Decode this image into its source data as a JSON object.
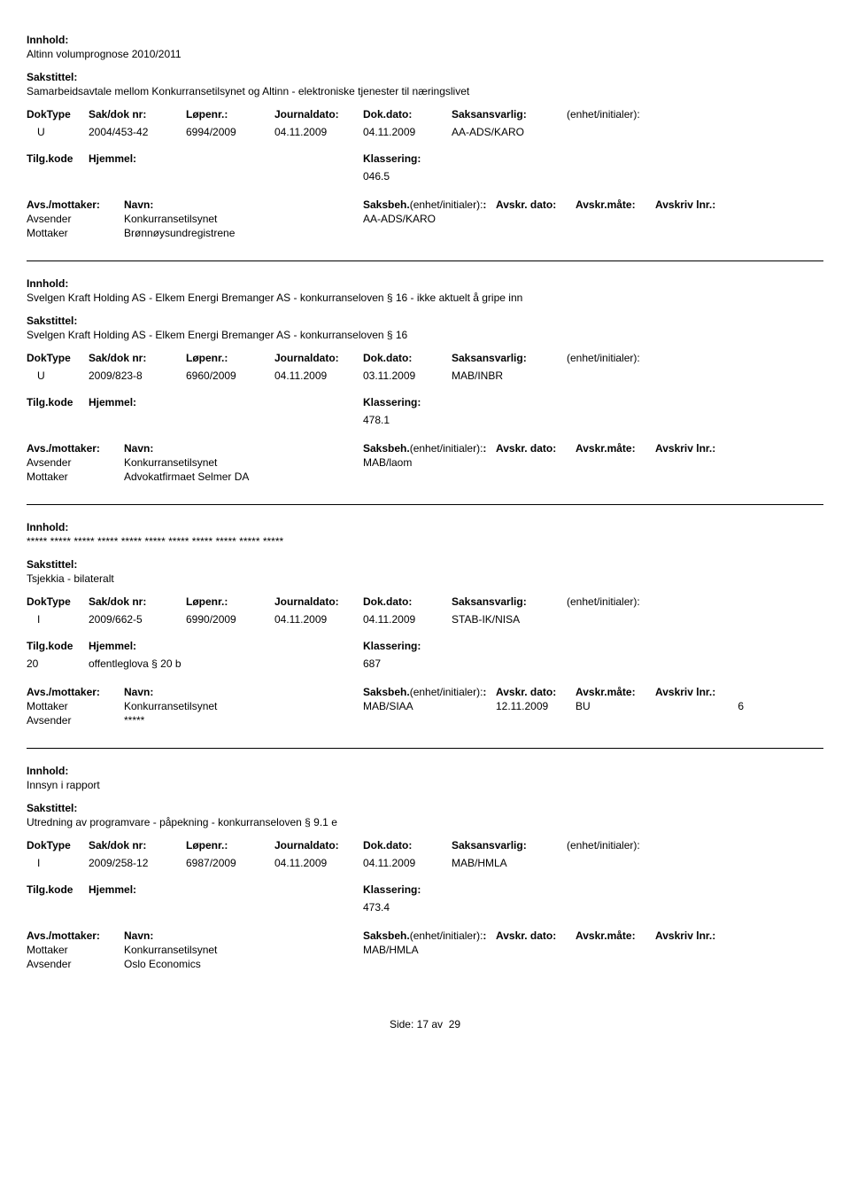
{
  "labels": {
    "innhold": "Innhold:",
    "sakstittel": "Sakstittel:",
    "doktype": "DokType",
    "sakdok": "Sak/dok nr:",
    "lopenr": "Løpenr.:",
    "journaldato": "Journaldato:",
    "dokdato": "Dok.dato:",
    "saksansvarlig": "Saksansvarlig:",
    "enhet": "(enhet/initialer):",
    "tilgkode": "Tilg.kode",
    "hjemmel": "Hjemmel:",
    "klassering": "Klassering:",
    "avsmottaker": "Avs./mottaker:",
    "navn": "Navn:",
    "saksbeh": "Saksbeh.",
    "avskrdato": "Avskr. dato:",
    "avskrmate": "Avskr.måte:",
    "avskrivlnr": "Avskriv lnr.:",
    "avsender": "Avsender",
    "mottaker": "Mottaker"
  },
  "records": [
    {
      "innhold": "Altinn volumprognose 2010/2011",
      "sakstittel": "Samarbeidsavtale mellom Konkurransetilsynet og Altinn - elektroniske tjenester til næringslivet",
      "doktype": "U",
      "sakdok": "2004/453-42",
      "lopenr": "6994/2009",
      "journaldato": "04.11.2009",
      "dokdato": "04.11.2009",
      "saksansvarlig": "AA-ADS/KARO",
      "tilgkode": "",
      "hjemmel": "",
      "klassering": "046.5",
      "avsender": {
        "navn": "Konkurransetilsynet",
        "code": "AA-ADS/KARO"
      },
      "mottaker": {
        "navn": "Brønnøysundregistrene",
        "code": ""
      },
      "avskr_date": "",
      "avskr_mate": "",
      "avskr_lnr": ""
    },
    {
      "innhold": "Svelgen Kraft Holding AS - Elkem Energi Bremanger AS - konkurranseloven § 16 - ikke aktuelt å gripe inn",
      "sakstittel": "Svelgen Kraft Holding AS - Elkem Energi Bremanger AS - konkurranseloven § 16",
      "doktype": "U",
      "sakdok": "2009/823-8",
      "lopenr": "6960/2009",
      "journaldato": "04.11.2009",
      "dokdato": "03.11.2009",
      "saksansvarlig": "MAB/INBR",
      "tilgkode": "",
      "hjemmel": "",
      "klassering": "478.1",
      "avsender": {
        "navn": "Konkurransetilsynet",
        "code": "MAB/laom"
      },
      "mottaker": {
        "navn": "Advokatfirmaet Selmer DA",
        "code": ""
      },
      "avskr_date": "",
      "avskr_mate": "",
      "avskr_lnr": ""
    },
    {
      "innhold": "***** ***** ***** ***** ***** ***** ***** ***** ***** ***** *****",
      "sakstittel": "Tsjekkia - bilateralt",
      "doktype": "I",
      "sakdok": "2009/662-5",
      "lopenr": "6990/2009",
      "journaldato": "04.11.2009",
      "dokdato": "04.11.2009",
      "saksansvarlig": "STAB-IK/NISA",
      "tilgkode": "20",
      "hjemmel": "offentleglova § 20 b",
      "klassering": "687",
      "mottaker": {
        "navn": "Konkurransetilsynet",
        "code": "MAB/SIAA"
      },
      "avsender": {
        "navn": "*****",
        "code": ""
      },
      "avskr_date": "12.11.2009",
      "avskr_mate": "BU",
      "avskr_lnr": "6",
      "swap": true
    },
    {
      "innhold": "Innsyn i rapport",
      "sakstittel": "Utredning av programvare - påpekning - konkurranseloven § 9.1 e",
      "doktype": "I",
      "sakdok": "2009/258-12",
      "lopenr": "6987/2009",
      "journaldato": "04.11.2009",
      "dokdato": "04.11.2009",
      "saksansvarlig": "MAB/HMLA",
      "tilgkode": "",
      "hjemmel": "",
      "klassering": "473.4",
      "mottaker": {
        "navn": "Konkurransetilsynet",
        "code": "MAB/HMLA"
      },
      "avsender": {
        "navn": "Oslo Economics",
        "code": ""
      },
      "avskr_date": "",
      "avskr_mate": "",
      "avskr_lnr": "",
      "swap": true,
      "no_border": true
    }
  ],
  "footer": {
    "side": "Side:",
    "page": "17",
    "av": "av",
    "total": "29"
  }
}
